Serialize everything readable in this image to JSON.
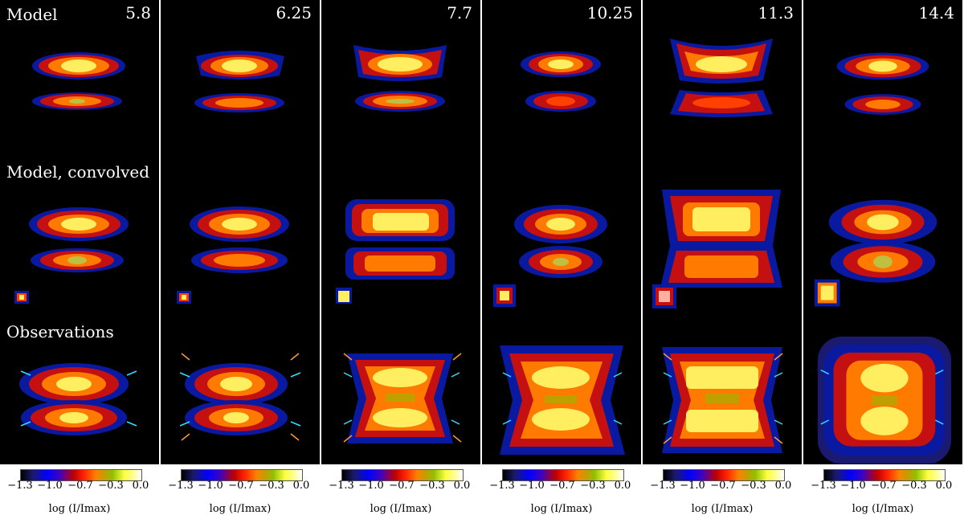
{
  "row_labels": {
    "model": "Model",
    "convolved": "Model, convolved",
    "observations": "Observations"
  },
  "panels": [
    {
      "wavelength": "5.8"
    },
    {
      "wavelength": "6.25"
    },
    {
      "wavelength": "7.7"
    },
    {
      "wavelength": "10.25"
    },
    {
      "wavelength": "11.3"
    },
    {
      "wavelength": "14.4"
    }
  ],
  "colorbar": {
    "ticks": [
      "−1.3",
      "−1.0",
      "−0.7",
      "−0.3",
      "0.0"
    ],
    "title": "log (I/Imax)"
  },
  "colors": {
    "background": "#000000",
    "cyan_marker": "#33ddff",
    "orange_marker": "#ff9933"
  }
}
